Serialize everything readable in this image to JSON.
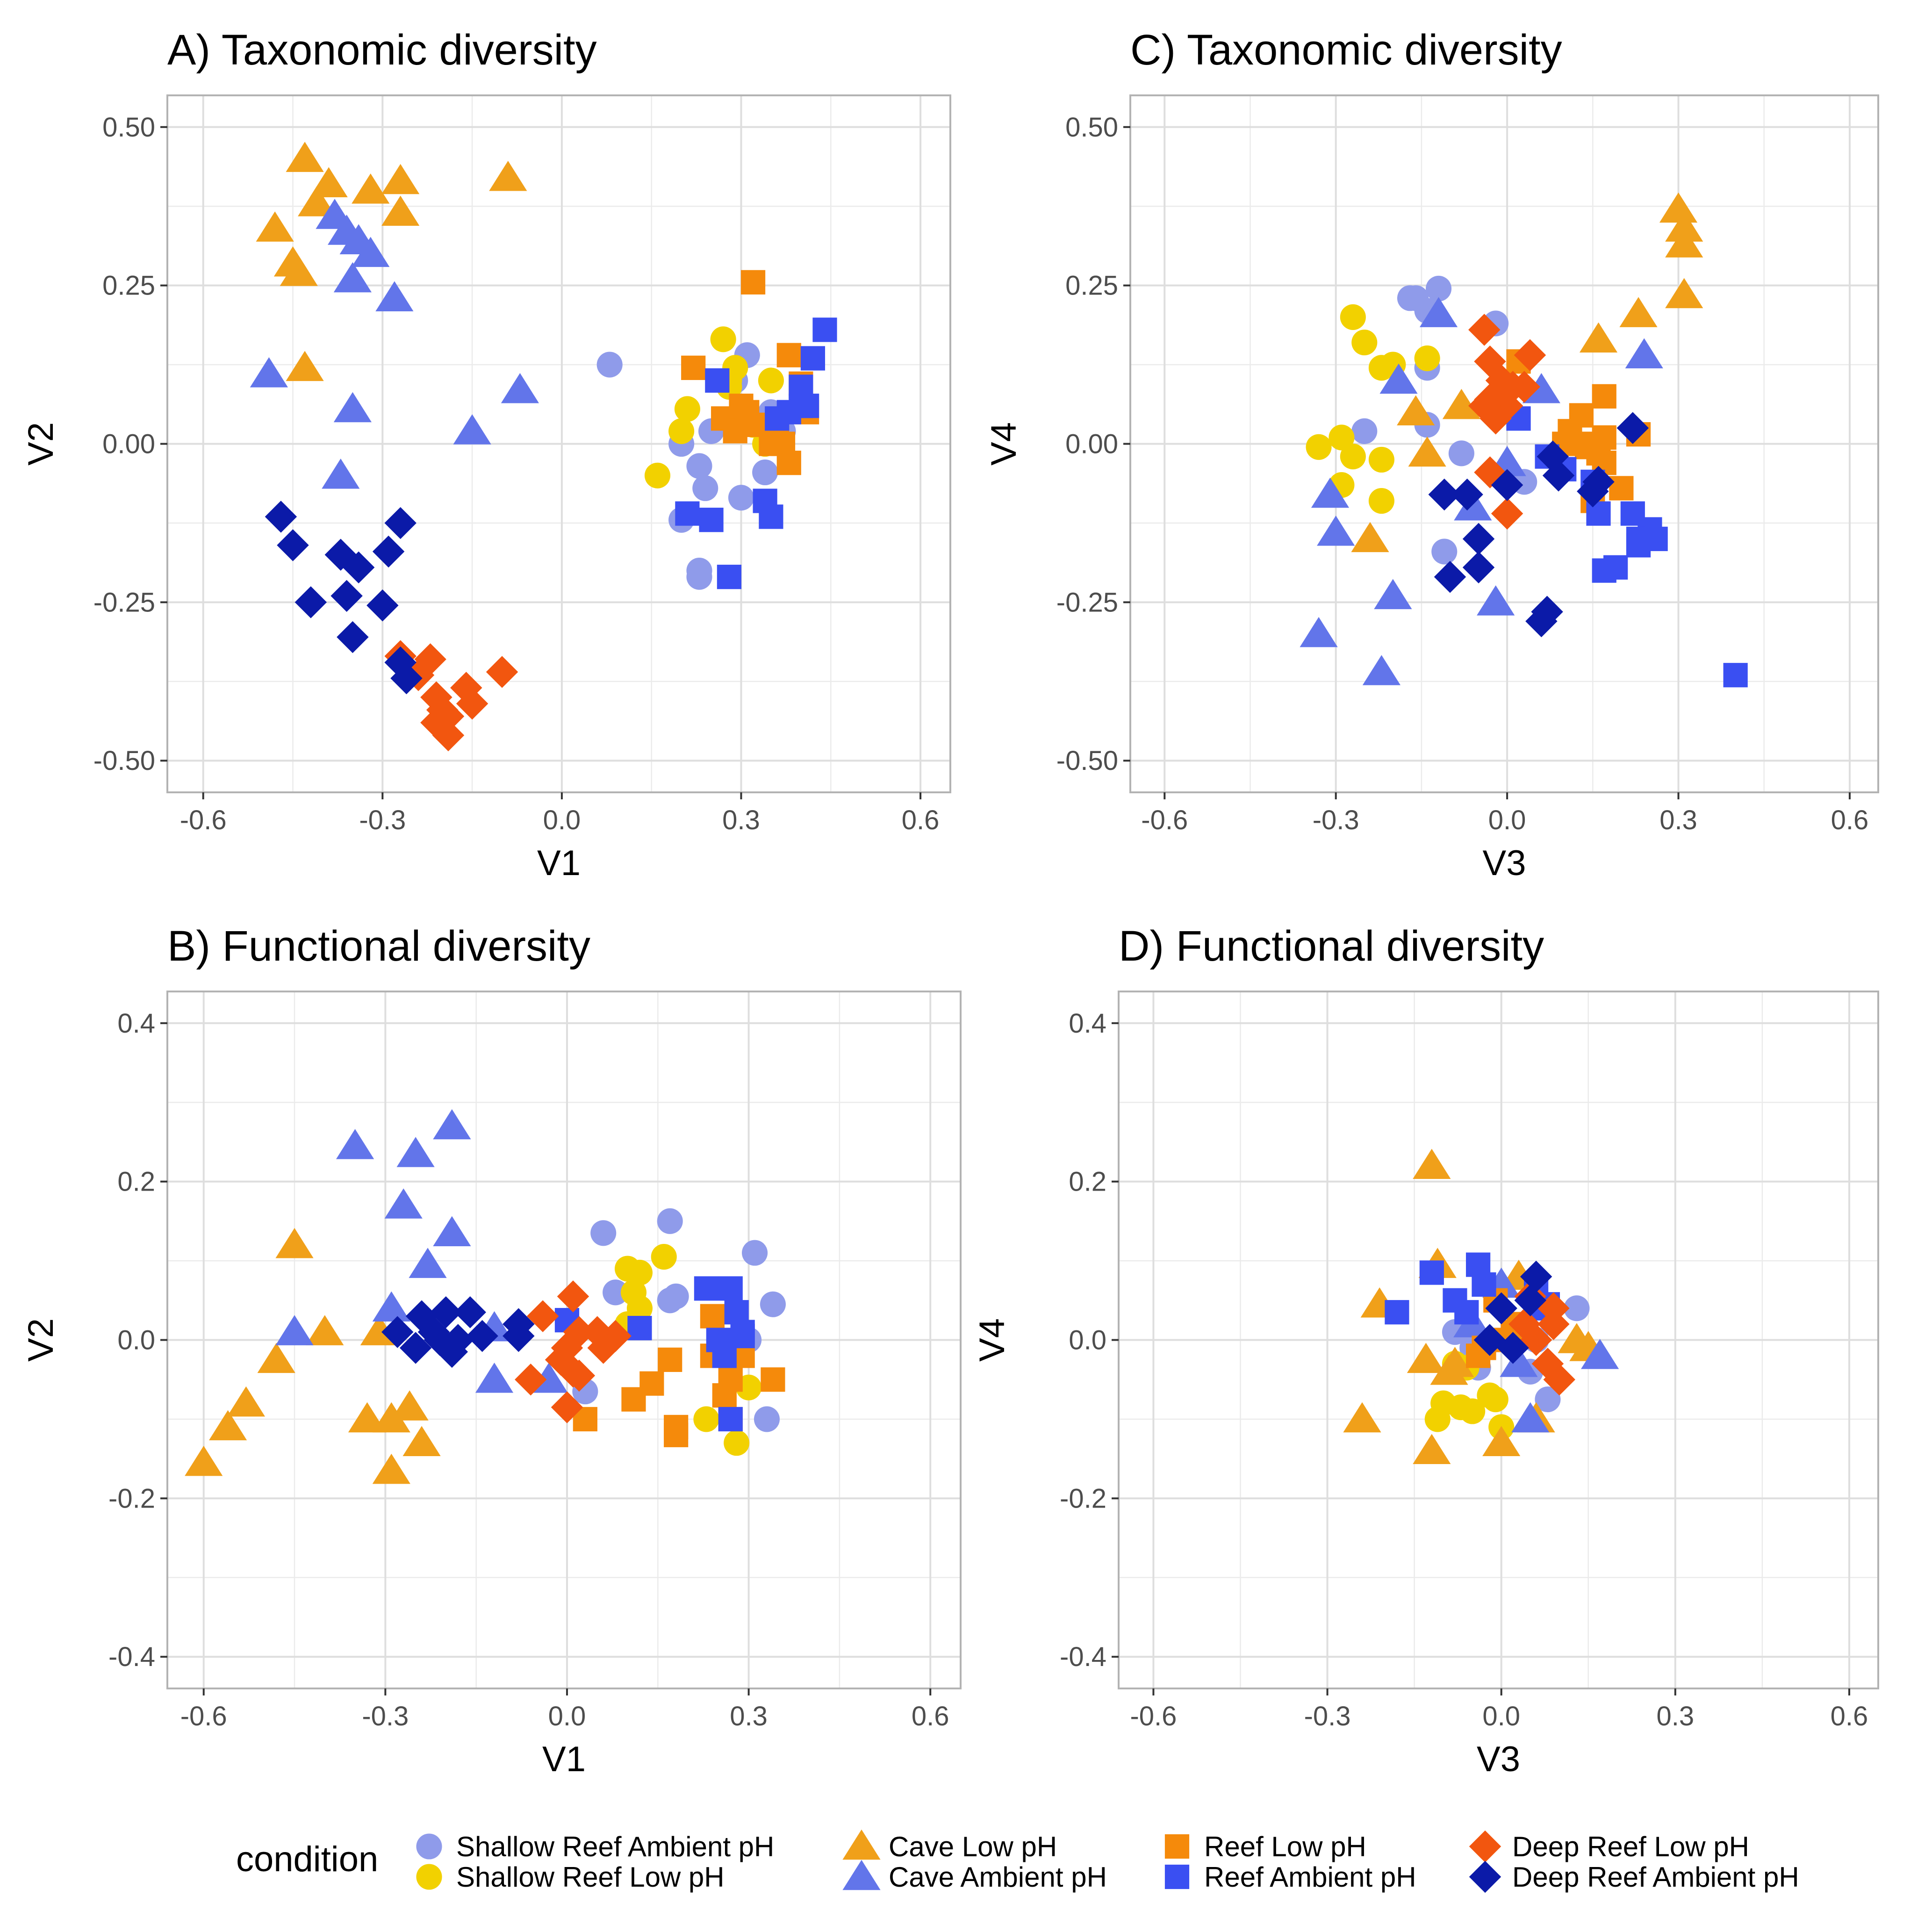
{
  "colors": {
    "Shallow Reef Ambient pH": "#8f9bea",
    "Shallow Reef Low pH": "#f2d100",
    "Cave Low pH": "#f0a01a",
    "Cave Ambient pH": "#6275ea",
    "Reef Low pH": "#f58a0b",
    "Reef Ambient pH": "#3a4ff2",
    "Deep Reef Low pH": "#f2560f",
    "Deep Reef Ambient pH": "#0b1aa8"
  },
  "shapes": {
    "Shallow Reef Ambient pH": "circle",
    "Shallow Reef Low pH": "circle",
    "Cave Low pH": "triangle",
    "Cave Ambient pH": "triangle",
    "Reef Low pH": "square",
    "Reef Ambient pH": "square",
    "Deep Reef Low pH": "diamond",
    "Deep Reef Ambient pH": "diamond"
  },
  "legend": {
    "title": "condition",
    "position": "bottom",
    "items": [
      "Shallow Reef Ambient pH",
      "Shallow Reef Low pH",
      "Cave Low pH",
      "Cave Ambient pH",
      "Reef Low pH",
      "Reef Ambient pH",
      "Deep Reef Low pH",
      "Deep Reef Ambient pH"
    ]
  },
  "chart_data": [
    {
      "type": "scatter",
      "title": "A) Taxonomic diversity",
      "xlabel": "V1",
      "ylabel": "V2",
      "xlim": [
        -0.66,
        0.65
      ],
      "ylim": [
        -0.55,
        0.55
      ],
      "xticks": [
        "-0.6",
        "-0.3",
        "0.0",
        "0.3",
        "0.6"
      ],
      "yticks": [
        "0.50",
        "0.25",
        "0.00",
        "-0.25",
        "-0.50"
      ],
      "grid": true,
      "series": [
        {
          "name": "Shallow Reef Ambient pH",
          "x": [
            0.08,
            0.31,
            0.25,
            0.29,
            0.34,
            0.23,
            0.2,
            0.23,
            0.24,
            0.3,
            0.2,
            0.23,
            0.35,
            0.37
          ],
          "y": [
            0.125,
            0.14,
            0.02,
            0.1,
            -0.045,
            -0.035,
            -0.12,
            -0.2,
            -0.07,
            -0.085,
            0.0,
            -0.21,
            0.05,
            0.02
          ]
        },
        {
          "name": "Shallow Reef Low pH",
          "x": [
            0.27,
            0.28,
            0.21,
            0.2,
            0.16,
            0.35,
            0.32,
            0.28,
            0.34,
            0.29
          ],
          "y": [
            0.165,
            0.1,
            0.055,
            0.02,
            -0.05,
            0.1,
            0.03,
            0.09,
            0.0,
            0.12
          ]
        },
        {
          "name": "Cave Low pH",
          "x": [
            -0.43,
            -0.39,
            -0.41,
            -0.32,
            -0.27,
            -0.27,
            -0.48,
            -0.45,
            -0.44,
            -0.43,
            -0.09
          ],
          "y": [
            0.45,
            0.41,
            0.38,
            0.4,
            0.415,
            0.365,
            0.34,
            0.285,
            0.27,
            0.12,
            0.42
          ]
        },
        {
          "name": "Cave Ambient pH",
          "x": [
            -0.38,
            -0.36,
            -0.34,
            -0.32,
            -0.35,
            -0.28,
            -0.49,
            -0.35,
            -0.37,
            -0.15,
            -0.07
          ],
          "y": [
            0.36,
            0.335,
            0.32,
            0.3,
            0.26,
            0.23,
            0.11,
            0.055,
            -0.05,
            0.02,
            0.085
          ]
        },
        {
          "name": "Reef Low pH",
          "x": [
            0.32,
            0.22,
            0.38,
            0.4,
            0.27,
            0.29,
            0.31,
            0.35,
            0.36,
            0.38,
            0.41,
            0.3,
            0.37,
            0.33
          ],
          "y": [
            0.255,
            0.12,
            0.14,
            0.095,
            0.04,
            0.02,
            0.05,
            0.0,
            0.01,
            -0.03,
            0.05,
            0.06,
            0.0,
            0.03
          ]
        },
        {
          "name": "Reef Ambient pH",
          "x": [
            0.44,
            0.42,
            0.4,
            0.26,
            0.4,
            0.38,
            0.41,
            0.34,
            0.35,
            0.21,
            0.25,
            0.28,
            0.36
          ],
          "y": [
            0.18,
            0.135,
            0.09,
            0.1,
            0.06,
            0.05,
            0.06,
            -0.09,
            -0.115,
            -0.11,
            -0.12,
            -0.21,
            0.04
          ]
        },
        {
          "name": "Deep Reef Low pH",
          "x": [
            -0.27,
            -0.22,
            -0.24,
            -0.21,
            -0.16,
            -0.19,
            -0.15,
            -0.1,
            -0.21,
            -0.19,
            -0.2
          ],
          "y": [
            -0.335,
            -0.34,
            -0.365,
            -0.4,
            -0.385,
            -0.43,
            -0.41,
            -0.36,
            -0.44,
            -0.46,
            -0.42
          ]
        },
        {
          "name": "Deep Reef Ambient pH",
          "x": [
            -0.47,
            -0.45,
            -0.27,
            -0.37,
            -0.34,
            -0.29,
            -0.42,
            -0.36,
            -0.3,
            -0.35,
            -0.27,
            -0.26
          ],
          "y": [
            -0.115,
            -0.16,
            -0.125,
            -0.175,
            -0.195,
            -0.17,
            -0.25,
            -0.24,
            -0.255,
            -0.305,
            -0.345,
            -0.37
          ]
        }
      ]
    },
    {
      "type": "scatter",
      "title": "C) Taxonomic diversity",
      "xlabel": "V3",
      "ylabel": "V4",
      "xlim": [
        -0.66,
        0.65
      ],
      "ylim": [
        -0.55,
        0.55
      ],
      "xticks": [
        "-0.6",
        "-0.3",
        "0.0",
        "0.3",
        "0.6"
      ],
      "yticks": [
        "0.50",
        "0.25",
        "0.00",
        "-0.25",
        "-0.50"
      ],
      "grid": true,
      "series": [
        {
          "name": "Shallow Reef Ambient pH",
          "x": [
            -0.17,
            -0.12,
            -0.16,
            -0.14,
            -0.02,
            -0.25,
            -0.14,
            -0.14,
            -0.08,
            -0.11,
            0.03
          ],
          "y": [
            0.23,
            0.245,
            0.23,
            0.21,
            0.19,
            0.02,
            0.12,
            0.03,
            -0.015,
            -0.17,
            -0.06
          ]
        },
        {
          "name": "Shallow Reef Low pH",
          "x": [
            -0.27,
            -0.25,
            -0.22,
            -0.2,
            -0.14,
            -0.33,
            -0.29,
            -0.27,
            -0.22,
            -0.29,
            -0.22
          ],
          "y": [
            0.2,
            0.16,
            0.12,
            0.125,
            0.135,
            -0.005,
            0.01,
            -0.02,
            -0.025,
            -0.065,
            -0.09
          ]
        },
        {
          "name": "Cave Low pH",
          "x": [
            0.3,
            0.31,
            0.31,
            0.31,
            0.23,
            0.16,
            -0.16,
            -0.08,
            -0.14,
            -0.24
          ],
          "y": [
            0.37,
            0.34,
            0.315,
            0.235,
            0.205,
            0.165,
            0.05,
            0.06,
            -0.015,
            -0.15
          ]
        },
        {
          "name": "Cave Ambient pH",
          "x": [
            0.24,
            -0.12,
            0.06,
            -0.19,
            -0.31,
            -0.3,
            -0.06,
            -0.2,
            -0.02,
            -0.33,
            -0.22,
            0.0
          ],
          "y": [
            0.14,
            0.205,
            0.085,
            0.1,
            -0.08,
            -0.14,
            -0.1,
            -0.24,
            -0.25,
            -0.3,
            -0.36,
            -0.03
          ]
        },
        {
          "name": "Reef Low pH",
          "x": [
            0.02,
            0.13,
            0.17,
            0.17,
            0.11,
            0.14,
            0.15,
            0.16,
            0.17,
            0.23,
            0.2,
            0.15,
            0.1
          ],
          "y": [
            0.13,
            0.045,
            0.075,
            0.01,
            0.02,
            -0.005,
            0.0,
            -0.015,
            -0.03,
            0.015,
            -0.07,
            -0.09,
            0.0
          ]
        },
        {
          "name": "Reef Ambient pH",
          "x": [
            0.4,
            0.17,
            0.19,
            0.23,
            0.25,
            0.23,
            0.22,
            0.16,
            0.26,
            0.07,
            0.1,
            0.02,
            0.15
          ],
          "y": [
            -0.365,
            -0.2,
            -0.195,
            -0.16,
            -0.135,
            -0.15,
            -0.11,
            -0.11,
            -0.15,
            -0.02,
            -0.04,
            0.04,
            -0.06
          ]
        },
        {
          "name": "Deep Reef Low pH",
          "x": [
            -0.04,
            0.04,
            -0.03,
            -0.01,
            0.01,
            0.0,
            -0.04,
            -0.03,
            -0.02,
            -0.03,
            0.0,
            0.03
          ],
          "y": [
            0.18,
            0.14,
            0.13,
            0.1,
            0.09,
            0.06,
            0.06,
            0.07,
            0.04,
            -0.045,
            -0.11,
            0.09
          ]
        },
        {
          "name": "Deep Reef Ambient pH",
          "x": [
            0.22,
            0.08,
            0.09,
            -0.07,
            -0.05,
            0.06,
            0.07,
            -0.1,
            -0.11,
            -0.05,
            0.16,
            0.0,
            0.15
          ],
          "y": [
            0.025,
            -0.02,
            -0.05,
            -0.08,
            -0.15,
            -0.28,
            -0.265,
            -0.21,
            -0.08,
            -0.195,
            -0.06,
            -0.065,
            -0.075
          ]
        }
      ]
    },
    {
      "type": "scatter",
      "title": "B) Functional diversity",
      "xlabel": "V1",
      "ylabel": "V2",
      "xlim": [
        -0.66,
        0.65
      ],
      "ylim": [
        -0.44,
        0.44
      ],
      "xticks": [
        "-0.6",
        "-0.3",
        "0.0",
        "0.3",
        "0.6"
      ],
      "yticks": [
        "0.4",
        "0.2",
        "0.0",
        "-0.2",
        "-0.4"
      ],
      "grid": true,
      "series": [
        {
          "name": "Shallow Reef Ambient pH",
          "x": [
            0.06,
            0.17,
            0.31,
            0.34,
            0.08,
            0.17,
            0.18,
            0.33,
            0.03,
            0.3
          ],
          "y": [
            0.135,
            0.15,
            0.11,
            0.045,
            0.06,
            0.05,
            0.055,
            -0.1,
            -0.065,
            0.0
          ]
        },
        {
          "name": "Shallow Reef Low pH",
          "x": [
            0.1,
            0.12,
            0.16,
            0.11,
            0.12,
            0.1,
            0.23,
            0.28,
            0.3
          ],
          "y": [
            0.09,
            0.085,
            0.105,
            0.06,
            0.04,
            0.02,
            -0.1,
            -0.13,
            -0.06
          ]
        },
        {
          "name": "Cave Low pH",
          "x": [
            -0.45,
            -0.4,
            -0.31,
            -0.48,
            -0.26,
            -0.29,
            -0.53,
            -0.56,
            -0.6,
            -0.24,
            -0.33,
            -0.29
          ],
          "y": [
            0.12,
            0.01,
            0.01,
            -0.025,
            -0.085,
            -0.1,
            -0.08,
            -0.11,
            -0.155,
            -0.13,
            -0.1,
            -0.165
          ]
        },
        {
          "name": "Cave Ambient pH",
          "x": [
            -0.19,
            -0.35,
            -0.25,
            -0.27,
            -0.19,
            -0.23,
            -0.29,
            -0.45,
            -0.12,
            -0.12,
            -0.03
          ],
          "y": [
            0.27,
            0.245,
            0.235,
            0.17,
            0.135,
            0.095,
            0.04,
            0.01,
            0.015,
            -0.05,
            -0.05
          ]
        },
        {
          "name": "Reef Low pH",
          "x": [
            0.03,
            0.11,
            0.14,
            0.17,
            0.18,
            0.18,
            0.24,
            0.27,
            0.26,
            0.27,
            0.29,
            0.34,
            0.24
          ],
          "y": [
            -0.1,
            -0.075,
            -0.055,
            -0.025,
            -0.11,
            -0.12,
            0.03,
            -0.05,
            -0.07,
            -0.1,
            -0.02,
            -0.05,
            -0.02
          ]
        },
        {
          "name": "Reef Ambient pH",
          "x": [
            0.23,
            0.27,
            0.28,
            0.29,
            0.25,
            0.26,
            0.12,
            0.29,
            0.0,
            0.27
          ],
          "y": [
            0.065,
            0.065,
            0.035,
            0.01,
            0.0,
            -0.02,
            0.015,
            0.005,
            0.025,
            -0.1
          ]
        },
        {
          "name": "Deep Reef Low pH",
          "x": [
            0.01,
            -0.04,
            0.02,
            0.0,
            -0.01,
            0.02,
            0.06,
            -0.06,
            0.0,
            0.01,
            0.05,
            0.08
          ],
          "y": [
            0.055,
            0.03,
            0.01,
            -0.01,
            -0.025,
            -0.045,
            -0.01,
            -0.05,
            -0.085,
            -0.04,
            0.01,
            0.005
          ]
        },
        {
          "name": "Deep Reef Ambient pH",
          "x": [
            -0.24,
            -0.2,
            -0.16,
            -0.28,
            -0.22,
            -0.18,
            -0.08,
            -0.25,
            -0.21,
            -0.19,
            -0.14,
            -0.08
          ],
          "y": [
            0.03,
            0.035,
            0.035,
            0.01,
            0.01,
            0.0,
            0.02,
            -0.01,
            0.0,
            -0.015,
            0.005,
            0.005
          ]
        }
      ]
    },
    {
      "type": "scatter",
      "title": "D) Functional diversity",
      "xlabel": "V3",
      "ylabel": "V4",
      "xlim": [
        -0.66,
        0.65
      ],
      "ylim": [
        -0.44,
        0.44
      ],
      "xticks": [
        "-0.6",
        "-0.3",
        "0.0",
        "0.3",
        "0.6"
      ],
      "yticks": [
        "0.4",
        "0.2",
        "0.0",
        "-0.2",
        "-0.4"
      ],
      "grid": true,
      "series": [
        {
          "name": "Shallow Reef Ambient pH",
          "x": [
            0.13,
            -0.08,
            0.05,
            0.08,
            0.06,
            -0.05,
            -0.04
          ],
          "y": [
            0.04,
            0.01,
            -0.04,
            -0.075,
            0.0,
            -0.01,
            -0.035
          ]
        },
        {
          "name": "Shallow Reef Low pH",
          "x": [
            -0.1,
            -0.07,
            -0.05,
            -0.01,
            0.0,
            -0.11,
            -0.08,
            -0.02,
            -0.06
          ],
          "y": [
            -0.08,
            -0.085,
            -0.09,
            -0.075,
            -0.11,
            -0.1,
            -0.03,
            -0.07,
            -0.035
          ]
        },
        {
          "name": "Cave Low pH",
          "x": [
            -0.12,
            -0.11,
            -0.21,
            -0.13,
            -0.08,
            0.03,
            0.13,
            0.15,
            -0.09,
            -0.24,
            -0.12,
            0.0,
            0.06
          ],
          "y": [
            0.22,
            0.095,
            0.045,
            -0.025,
            -0.03,
            0.08,
            0.0,
            -0.01,
            -0.04,
            -0.1,
            -0.14,
            -0.13,
            -0.1
          ]
        },
        {
          "name": "Cave Ambient pH",
          "x": [
            0.0,
            0.17,
            0.03,
            0.05,
            -0.05
          ],
          "y": [
            0.07,
            -0.02,
            -0.03,
            -0.1,
            0.02
          ]
        },
        {
          "name": "Reef Low pH",
          "x": [
            0.0,
            -0.03,
            -0.04,
            0.02,
            -0.01,
            0.03
          ],
          "y": [
            0.0,
            -0.01,
            -0.02,
            0.01,
            0.05,
            0.02
          ]
        },
        {
          "name": "Reef Ambient pH",
          "x": [
            -0.12,
            -0.04,
            -0.08,
            -0.03,
            -0.06,
            -0.18,
            0.06,
            0.08,
            0.06
          ],
          "y": [
            0.085,
            0.095,
            0.05,
            0.07,
            0.035,
            0.035,
            0.06,
            0.045,
            0.04
          ]
        },
        {
          "name": "Deep Reef Low pH",
          "x": [
            0.09,
            0.1,
            0.06,
            0.08,
            0.04,
            0.09,
            0.05
          ],
          "y": [
            0.02,
            -0.05,
            0.0,
            -0.03,
            0.02,
            0.04,
            0.055
          ]
        },
        {
          "name": "Deep Reef Ambient pH",
          "x": [
            0.06,
            0.05,
            0.02,
            -0.02,
            0.0
          ],
          "y": [
            0.08,
            0.05,
            -0.01,
            0.0,
            0.04
          ]
        }
      ]
    }
  ]
}
